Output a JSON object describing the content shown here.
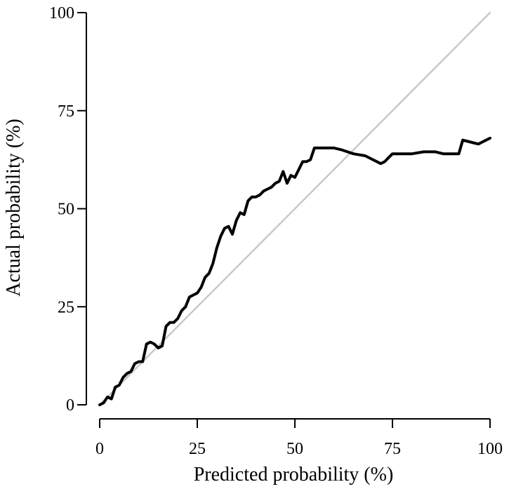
{
  "chart_data": {
    "type": "line",
    "title": "",
    "xlabel": "Predicted probability (%)",
    "ylabel": "Actual probability (%)",
    "xlim": [
      0,
      100
    ],
    "ylim": [
      0,
      100
    ],
    "x_ticks": [
      "0",
      "25",
      "50",
      "75",
      "100"
    ],
    "y_ticks": [
      "0",
      "25",
      "50",
      "75",
      "100"
    ],
    "grid": false,
    "legend": "none",
    "series": [
      {
        "role": "reference",
        "color": "#c8c8c8",
        "x": [
          0,
          100
        ],
        "y": [
          0,
          100
        ]
      },
      {
        "role": "calibration",
        "color": "#000000",
        "x": [
          0,
          1,
          2,
          3,
          4,
          5,
          6,
          7,
          8,
          9,
          10,
          11,
          12,
          13,
          14,
          15,
          16,
          17,
          18,
          19,
          20,
          21,
          22,
          23,
          24,
          25,
          26,
          27,
          28,
          29,
          30,
          31,
          32,
          33,
          34,
          35,
          36,
          37,
          38,
          39,
          40,
          41,
          42,
          43,
          44,
          45,
          46,
          47,
          48,
          49,
          50,
          51,
          52,
          53,
          54,
          55,
          56,
          57,
          58,
          60,
          62,
          65,
          68,
          70,
          71,
          72,
          73,
          74,
          75,
          77,
          80,
          83,
          86,
          88,
          90,
          92,
          93,
          95,
          97,
          100
        ],
        "y": [
          0,
          0.5,
          2,
          1.5,
          4.5,
          5,
          7,
          8,
          8.5,
          10.5,
          11,
          11,
          15.5,
          16,
          15.5,
          14.5,
          15,
          20,
          21,
          21,
          22,
          24,
          25,
          27.5,
          28,
          28.5,
          30,
          32.5,
          33.5,
          36,
          40,
          43,
          45,
          45.5,
          43.5,
          47,
          49,
          48.5,
          52,
          53,
          53,
          53.5,
          54.5,
          55,
          55.5,
          56.5,
          57,
          59.5,
          56.5,
          58.5,
          58,
          60,
          62,
          62,
          62.5,
          65.5,
          65.5,
          65.5,
          65.5,
          65.5,
          65,
          64,
          63.5,
          62.5,
          62,
          61.5,
          62,
          63,
          64,
          64,
          64,
          64.5,
          64.5,
          64,
          64,
          64,
          67.5,
          67,
          66.5,
          68
        ]
      }
    ]
  }
}
